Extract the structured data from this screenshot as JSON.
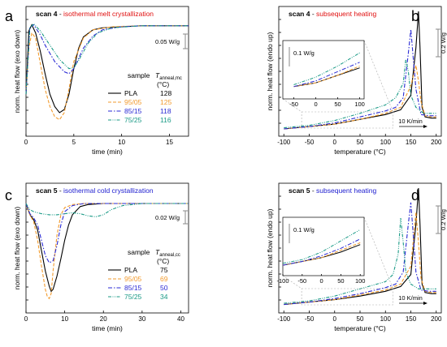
{
  "colors": {
    "pla": "#000000",
    "s9505": "#f29b2e",
    "s8515": "#2a2ad4",
    "s7525": "#1a9a86",
    "title_a": "#e01010",
    "title_c": "#2020d0"
  },
  "panels": [
    {
      "letter": "a",
      "scan": "scan 4",
      "sep": " - ",
      "desc": "isothermal melt crystallization",
      "desc_color": "#e01010",
      "xlabel": "time (min)",
      "ylabel": "norm. heat flow (exo down)",
      "xticks": [
        "0",
        "5",
        "10",
        "15"
      ],
      "scale": "0.05 W/g",
      "legend": {
        "head1": "sample",
        "head2": "T",
        "sub": "anneal,mc",
        "unit": "(°C)",
        "rows": [
          {
            "name": "PLA",
            "val": "128"
          },
          {
            "name": "95/05",
            "val": "125"
          },
          {
            "name": "85/15",
            "val": "118"
          },
          {
            "name": "75/25",
            "val": "116"
          }
        ]
      }
    },
    {
      "letter": "b",
      "scan": "scan 4",
      "sep": " - ",
      "desc": "subsequent heating",
      "desc_color": "#e01010",
      "xlabel": "temperature (°C)",
      "ylabel": "norm. heat flow (endo up)",
      "xticks": [
        "-100",
        "-50",
        "0",
        "50",
        "100",
        "150",
        "200"
      ],
      "scale": "0.2 W/g",
      "inset": {
        "scale": "0.1 W/g",
        "xticks": [
          "-50",
          "0",
          "50",
          "100"
        ]
      },
      "rate": "10 K/min"
    },
    {
      "letter": "c",
      "scan": "scan 5",
      "sep": " - ",
      "desc": "isothermal cold crystallization",
      "desc_color": "#2020d0",
      "xlabel": "time (min)",
      "ylabel": "norm. heat flow (exo down)",
      "xticks": [
        "0",
        "10",
        "20",
        "30",
        "40"
      ],
      "scale": "0.02 W/g",
      "legend": {
        "head1": "sample",
        "head2": "T",
        "sub": "anneal,cc",
        "unit": "(°C)",
        "rows": [
          {
            "name": "PLA",
            "val": "75"
          },
          {
            "name": "95/05",
            "val": "69"
          },
          {
            "name": "85/15",
            "val": "50"
          },
          {
            "name": "75/25",
            "val": "34"
          }
        ]
      }
    },
    {
      "letter": "d",
      "scan": "scan 5",
      "sep": " - ",
      "desc": "subsequent heating",
      "desc_color": "#2020d0",
      "xlabel": "temperature (°C)",
      "ylabel": "norm. heat flow (endo up)",
      "xticks": [
        "-100",
        "-50",
        "0",
        "50",
        "100",
        "150",
        "200"
      ],
      "scale": "0.2 W/g",
      "inset": {
        "scale": "0.1 W/g",
        "xticks": [
          "-100",
          "-50",
          "0",
          "50",
          "100"
        ]
      },
      "rate": "10 K/min"
    }
  ],
  "chart_data": [
    {
      "type": "line",
      "panel": "a",
      "xlim": [
        0,
        17
      ],
      "series": [
        {
          "name": "PLA",
          "x": [
            0,
            0.3,
            0.6,
            1,
            1.5,
            2,
            2.5,
            3,
            3.5,
            4,
            4.5,
            5,
            5.5,
            6,
            7,
            8,
            10,
            12,
            14,
            17
          ],
          "y": [
            0.3,
            0.92,
            0.98,
            0.9,
            0.72,
            0.5,
            0.3,
            0.18,
            0.12,
            0.15,
            0.3,
            0.55,
            0.75,
            0.86,
            0.93,
            0.95,
            0.96,
            0.97,
            0.97,
            0.97
          ]
        },
        {
          "name": "95/05",
          "x": [
            0,
            0.3,
            0.6,
            1,
            1.5,
            2,
            2.5,
            3,
            3.5,
            4,
            4.5,
            5,
            6,
            7,
            9,
            12,
            17
          ],
          "y": [
            0.3,
            0.75,
            0.9,
            0.85,
            0.6,
            0.35,
            0.18,
            0.08,
            0.05,
            0.12,
            0.35,
            0.62,
            0.85,
            0.93,
            0.96,
            0.97,
            0.97
          ]
        },
        {
          "name": "85/15",
          "x": [
            0,
            0.4,
            0.8,
            1.5,
            2,
            3,
            4,
            4.5,
            5,
            5.5,
            6,
            7,
            8,
            10,
            12,
            17
          ],
          "y": [
            0.3,
            0.95,
            0.98,
            0.88,
            0.78,
            0.62,
            0.52,
            0.5,
            0.55,
            0.65,
            0.75,
            0.87,
            0.93,
            0.96,
            0.97,
            0.97
          ]
        },
        {
          "name": "75/25",
          "x": [
            0,
            0.4,
            0.8,
            1.5,
            2.5,
            3.5,
            4.5,
            5,
            5.5,
            6.5,
            7.5,
            9,
            12,
            17
          ],
          "y": [
            0.3,
            0.95,
            0.99,
            0.92,
            0.78,
            0.64,
            0.55,
            0.56,
            0.63,
            0.8,
            0.9,
            0.95,
            0.97,
            0.97
          ]
        }
      ]
    },
    {
      "type": "line",
      "panel": "b",
      "xlim": [
        -110,
        210
      ],
      "series": [
        {
          "name": "PLA",
          "x": [
            -100,
            -50,
            0,
            50,
            100,
            130,
            150,
            160,
            165,
            168,
            172,
            178,
            190,
            200
          ],
          "y": [
            0.02,
            0.04,
            0.06,
            0.1,
            0.14,
            0.18,
            0.3,
            0.7,
            1.0,
            0.7,
            0.2,
            0.12,
            0.11,
            0.11
          ]
        },
        {
          "name": "95/05",
          "x": [
            -100,
            -50,
            0,
            50,
            100,
            130,
            150,
            160,
            165,
            170,
            178,
            190,
            200
          ],
          "y": [
            0.02,
            0.04,
            0.06,
            0.1,
            0.15,
            0.2,
            0.38,
            0.55,
            0.42,
            0.25,
            0.13,
            0.12,
            0.12
          ]
        },
        {
          "name": "85/15",
          "x": [
            -100,
            -50,
            0,
            50,
            100,
            120,
            135,
            145,
            150,
            155,
            160,
            170,
            185,
            200
          ],
          "y": [
            0.02,
            0.04,
            0.07,
            0.12,
            0.17,
            0.2,
            0.28,
            0.65,
            0.85,
            0.6,
            0.35,
            0.14,
            0.13,
            0.13
          ]
        },
        {
          "name": "75/25",
          "x": [
            -100,
            -50,
            0,
            50,
            100,
            120,
            135,
            140,
            145,
            150,
            160,
            175,
            200
          ],
          "y": [
            0.03,
            0.05,
            0.09,
            0.15,
            0.22,
            0.28,
            0.4,
            0.6,
            0.5,
            0.3,
            0.2,
            0.15,
            0.15
          ]
        }
      ]
    },
    {
      "type": "line",
      "panel": "c",
      "xlim": [
        0,
        42
      ],
      "series": [
        {
          "name": "PLA",
          "x": [
            0,
            1,
            2,
            3,
            4,
            5,
            6,
            6.5,
            7,
            8,
            9,
            10,
            11,
            12,
            14,
            16,
            20,
            30,
            42
          ],
          "y": [
            0.96,
            0.85,
            0.8,
            0.7,
            0.5,
            0.3,
            0.15,
            0.1,
            0.12,
            0.25,
            0.42,
            0.6,
            0.75,
            0.85,
            0.93,
            0.95,
            0.96,
            0.96,
            0.96
          ]
        },
        {
          "name": "95/05",
          "x": [
            0,
            1,
            2,
            3,
            4,
            5,
            5.5,
            6,
            6.5,
            7,
            8,
            9,
            10,
            12,
            15,
            20,
            30,
            42
          ],
          "y": [
            0.96,
            0.85,
            0.78,
            0.6,
            0.35,
            0.12,
            0.05,
            0.03,
            0.08,
            0.3,
            0.65,
            0.85,
            0.92,
            0.95,
            0.96,
            0.96,
            0.96,
            0.96
          ]
        },
        {
          "name": "85/15",
          "x": [
            0,
            1,
            2,
            3,
            4,
            5,
            6,
            7,
            8,
            9,
            10,
            12,
            15,
            20,
            30,
            42
          ],
          "y": [
            0.96,
            0.86,
            0.82,
            0.75,
            0.6,
            0.45,
            0.38,
            0.4,
            0.55,
            0.75,
            0.88,
            0.94,
            0.96,
            0.96,
            0.96,
            0.96
          ]
        },
        {
          "name": "75/25",
          "x": [
            0,
            1,
            2,
            4,
            6,
            8,
            10,
            12,
            14,
            16,
            18,
            20,
            22,
            25,
            30,
            42
          ],
          "y": [
            0.96,
            0.9,
            0.88,
            0.86,
            0.85,
            0.85,
            0.86,
            0.87,
            0.86,
            0.84,
            0.83,
            0.85,
            0.9,
            0.94,
            0.96,
            0.96
          ]
        }
      ]
    },
    {
      "type": "line",
      "panel": "d",
      "xlim": [
        -110,
        210
      ],
      "series": [
        {
          "name": "PLA",
          "x": [
            -100,
            -50,
            0,
            50,
            100,
            130,
            150,
            160,
            165,
            168,
            172,
            178,
            190,
            200
          ],
          "y": [
            0.03,
            0.05,
            0.07,
            0.1,
            0.14,
            0.18,
            0.28,
            0.7,
            1.0,
            0.7,
            0.2,
            0.13,
            0.12,
            0.12
          ]
        },
        {
          "name": "95/05",
          "x": [
            -100,
            -50,
            0,
            50,
            100,
            130,
            150,
            160,
            165,
            170,
            178,
            190,
            200
          ],
          "y": [
            0.03,
            0.05,
            0.07,
            0.11,
            0.15,
            0.2,
            0.35,
            0.8,
            0.55,
            0.25,
            0.14,
            0.13,
            0.13
          ]
        },
        {
          "name": "85/15",
          "x": [
            -100,
            -50,
            0,
            50,
            100,
            120,
            135,
            145,
            150,
            155,
            160,
            170,
            185,
            200
          ],
          "y": [
            0.03,
            0.05,
            0.08,
            0.12,
            0.17,
            0.2,
            0.3,
            0.7,
            0.88,
            0.6,
            0.3,
            0.15,
            0.14,
            0.14
          ]
        },
        {
          "name": "75/25",
          "x": [
            -100,
            -50,
            0,
            50,
            100,
            115,
            125,
            130,
            135,
            140,
            150,
            165,
            200
          ],
          "y": [
            0.04,
            0.06,
            0.1,
            0.16,
            0.22,
            0.28,
            0.45,
            0.75,
            0.55,
            0.3,
            0.2,
            0.16,
            0.16
          ]
        }
      ]
    }
  ]
}
